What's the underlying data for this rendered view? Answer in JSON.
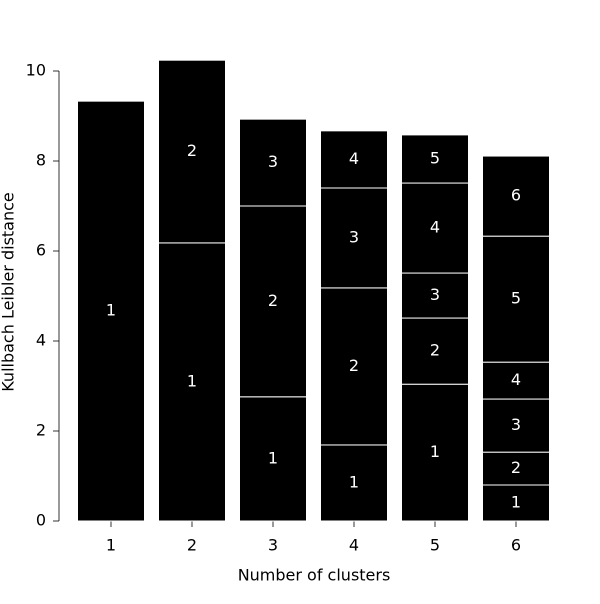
{
  "chart_data": {
    "type": "stacked-bar",
    "x_label": "Number of clusters",
    "y_label": "Kullbach Leibler distance",
    "categories": [
      "1",
      "2",
      "3",
      "4",
      "5",
      "6"
    ],
    "series": [
      {
        "name": "1",
        "color": "#000000",
        "values": [
          9.33,
          6.18,
          2.76,
          1.69,
          3.04,
          0.8
        ]
      },
      {
        "name": "2",
        "color": "#000000",
        "values": [
          null,
          4.06,
          4.24,
          3.49,
          1.47,
          0.73
        ]
      },
      {
        "name": "3",
        "color": "#000000",
        "values": [
          null,
          null,
          1.93,
          2.22,
          1.0,
          1.18
        ]
      },
      {
        "name": "4",
        "color": "#000000",
        "values": [
          null,
          null,
          null,
          1.27,
          2.0,
          0.82
        ]
      },
      {
        "name": "5",
        "color": "#000000",
        "values": [
          null,
          null,
          null,
          null,
          1.07,
          2.8
        ]
      },
      {
        "name": "6",
        "color": "#000000",
        "values": [
          null,
          null,
          null,
          null,
          null,
          1.78
        ]
      }
    ],
    "ylim": [
      0,
      10
    ],
    "yticks": [
      0,
      2,
      4,
      6,
      8,
      10
    ]
  }
}
